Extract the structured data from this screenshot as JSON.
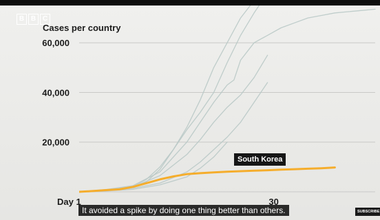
{
  "brand": {
    "logo_letters": [
      "B",
      "B",
      "C"
    ]
  },
  "subtitle": "It avoided a spike by doing one thing better than others.",
  "subscribe_label": "SUBSCRIBE",
  "colors": {
    "highlight_series": "#f5ad2c",
    "other_series": "#b9c9c6",
    "grid": "#c9c9c7"
  },
  "chart_data": {
    "type": "line",
    "title": "Cases per country",
    "xlabel": "",
    "ylabel": "",
    "xlim": [
      1,
      45
    ],
    "ylim": [
      0,
      75000
    ],
    "x_tick_labels": [
      {
        "x": 1,
        "label": "Day 1"
      },
      {
        "x": 30,
        "label": "30"
      }
    ],
    "y_ticks": [
      20000,
      40000,
      60000
    ],
    "y_tick_labels": [
      "20,000",
      "40,000",
      "60,000"
    ],
    "grid": true,
    "annotation": {
      "text": "South Korea",
      "series": "South Korea",
      "x": 34
    },
    "series": [
      {
        "name": "South Korea",
        "highlight": true,
        "x": [
          1,
          3,
          5,
          7,
          9,
          11,
          13,
          15,
          17,
          19,
          21,
          23,
          25,
          27,
          29,
          31,
          33,
          35,
          37,
          39
        ],
        "y": [
          0,
          300,
          700,
          1000,
          2000,
          3500,
          5000,
          6200,
          7100,
          7500,
          7800,
          8100,
          8300,
          8500,
          8700,
          8900,
          9100,
          9300,
          9500,
          9800
        ]
      },
      {
        "name": "",
        "x": [
          1,
          5,
          9,
          11,
          13,
          15,
          17,
          19,
          21,
          23,
          25,
          27,
          29,
          31
        ],
        "y": [
          0,
          800,
          2000,
          4000,
          9000,
          17000,
          26000,
          37000,
          50000,
          60000,
          70000,
          77000,
          85000,
          92000
        ]
      },
      {
        "name": "",
        "x": [
          1,
          5,
          9,
          11,
          13,
          15,
          17,
          19,
          21,
          23,
          25,
          27,
          29
        ],
        "y": [
          0,
          800,
          2100,
          5000,
          10000,
          17000,
          25000,
          32000,
          40000,
          52000,
          63000,
          72000,
          80000
        ]
      },
      {
        "name": "",
        "x": [
          1,
          5,
          9,
          13,
          17,
          19,
          21,
          23,
          24,
          25,
          27,
          29,
          31,
          33,
          35,
          37,
          39,
          41,
          43,
          45
        ],
        "y": [
          0,
          900,
          2500,
          8000,
          20000,
          28000,
          36000,
          43000,
          45000,
          53000,
          60000,
          63000,
          66000,
          68000,
          70000,
          71000,
          72000,
          72500,
          73000,
          73500
        ]
      },
      {
        "name": "",
        "x": [
          1,
          5,
          9,
          13,
          17,
          19,
          21,
          23,
          25,
          27,
          29
        ],
        "y": [
          0,
          700,
          2000,
          6500,
          15000,
          21000,
          28000,
          34000,
          39000,
          46000,
          55000
        ]
      },
      {
        "name": "",
        "x": [
          1,
          5,
          9,
          13,
          17,
          19,
          21,
          23,
          25,
          27,
          29
        ],
        "y": [
          0,
          500,
          1400,
          3500,
          8000,
          12000,
          17000,
          22000,
          28000,
          36000,
          44000
        ]
      },
      {
        "name": "",
        "x": [
          1,
          5,
          9,
          13,
          17,
          19,
          21,
          23
        ],
        "y": [
          0,
          300,
          1000,
          2800,
          6000,
          9500,
          14000,
          20000
        ]
      }
    ]
  }
}
